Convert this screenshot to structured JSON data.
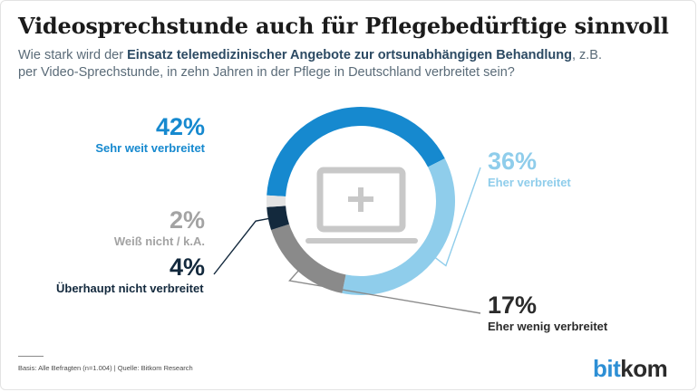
{
  "title": "Videosprechstunde auch für Pflegebedürftige sinnvoll",
  "subtitle": {
    "part1": "Wie stark wird der ",
    "bold": "Einsatz telemedizinischer Angebote zur ortsunabhängigen Behandlung",
    "part2": ", z.B.",
    "line2": "per Video-Sprechstunde, in zehn Jahren in der Pflege in Deutschland verbreitet sein?"
  },
  "chart_data": {
    "type": "pie",
    "donut": true,
    "slices": [
      {
        "label": "Sehr weit verbreitet",
        "value": 42,
        "display": "42%",
        "color": "#1689cf"
      },
      {
        "label": "Eher verbreitet",
        "value": 36,
        "display": "36%",
        "color": "#8fcdeb"
      },
      {
        "label": "Eher wenig verbreitet",
        "value": 17,
        "display": "17%",
        "color": "#8a8a8a"
      },
      {
        "label": "Überhaupt nicht verbreitet",
        "value": 4,
        "display": "4%",
        "color": "#13293d"
      },
      {
        "label": "Weiß nicht / k.A.",
        "value": 2,
        "display": "2%",
        "color": "#e3e3e3"
      }
    ],
    "center_icon": "laptop-plus-icon"
  },
  "label_colors": {
    "sehr_weit": "#1689cf",
    "eher": "#8fcdeb",
    "eher_wenig": "#2b2b2b",
    "ueberhaupt": "#13293d",
    "weiss_nicht": "#a3a3a3"
  },
  "footer": {
    "source": "Basis: Alle Befragten (n=1.004) | Quelle: Bitkom Research",
    "logo_part1": "bit",
    "logo_part2": "kom"
  }
}
